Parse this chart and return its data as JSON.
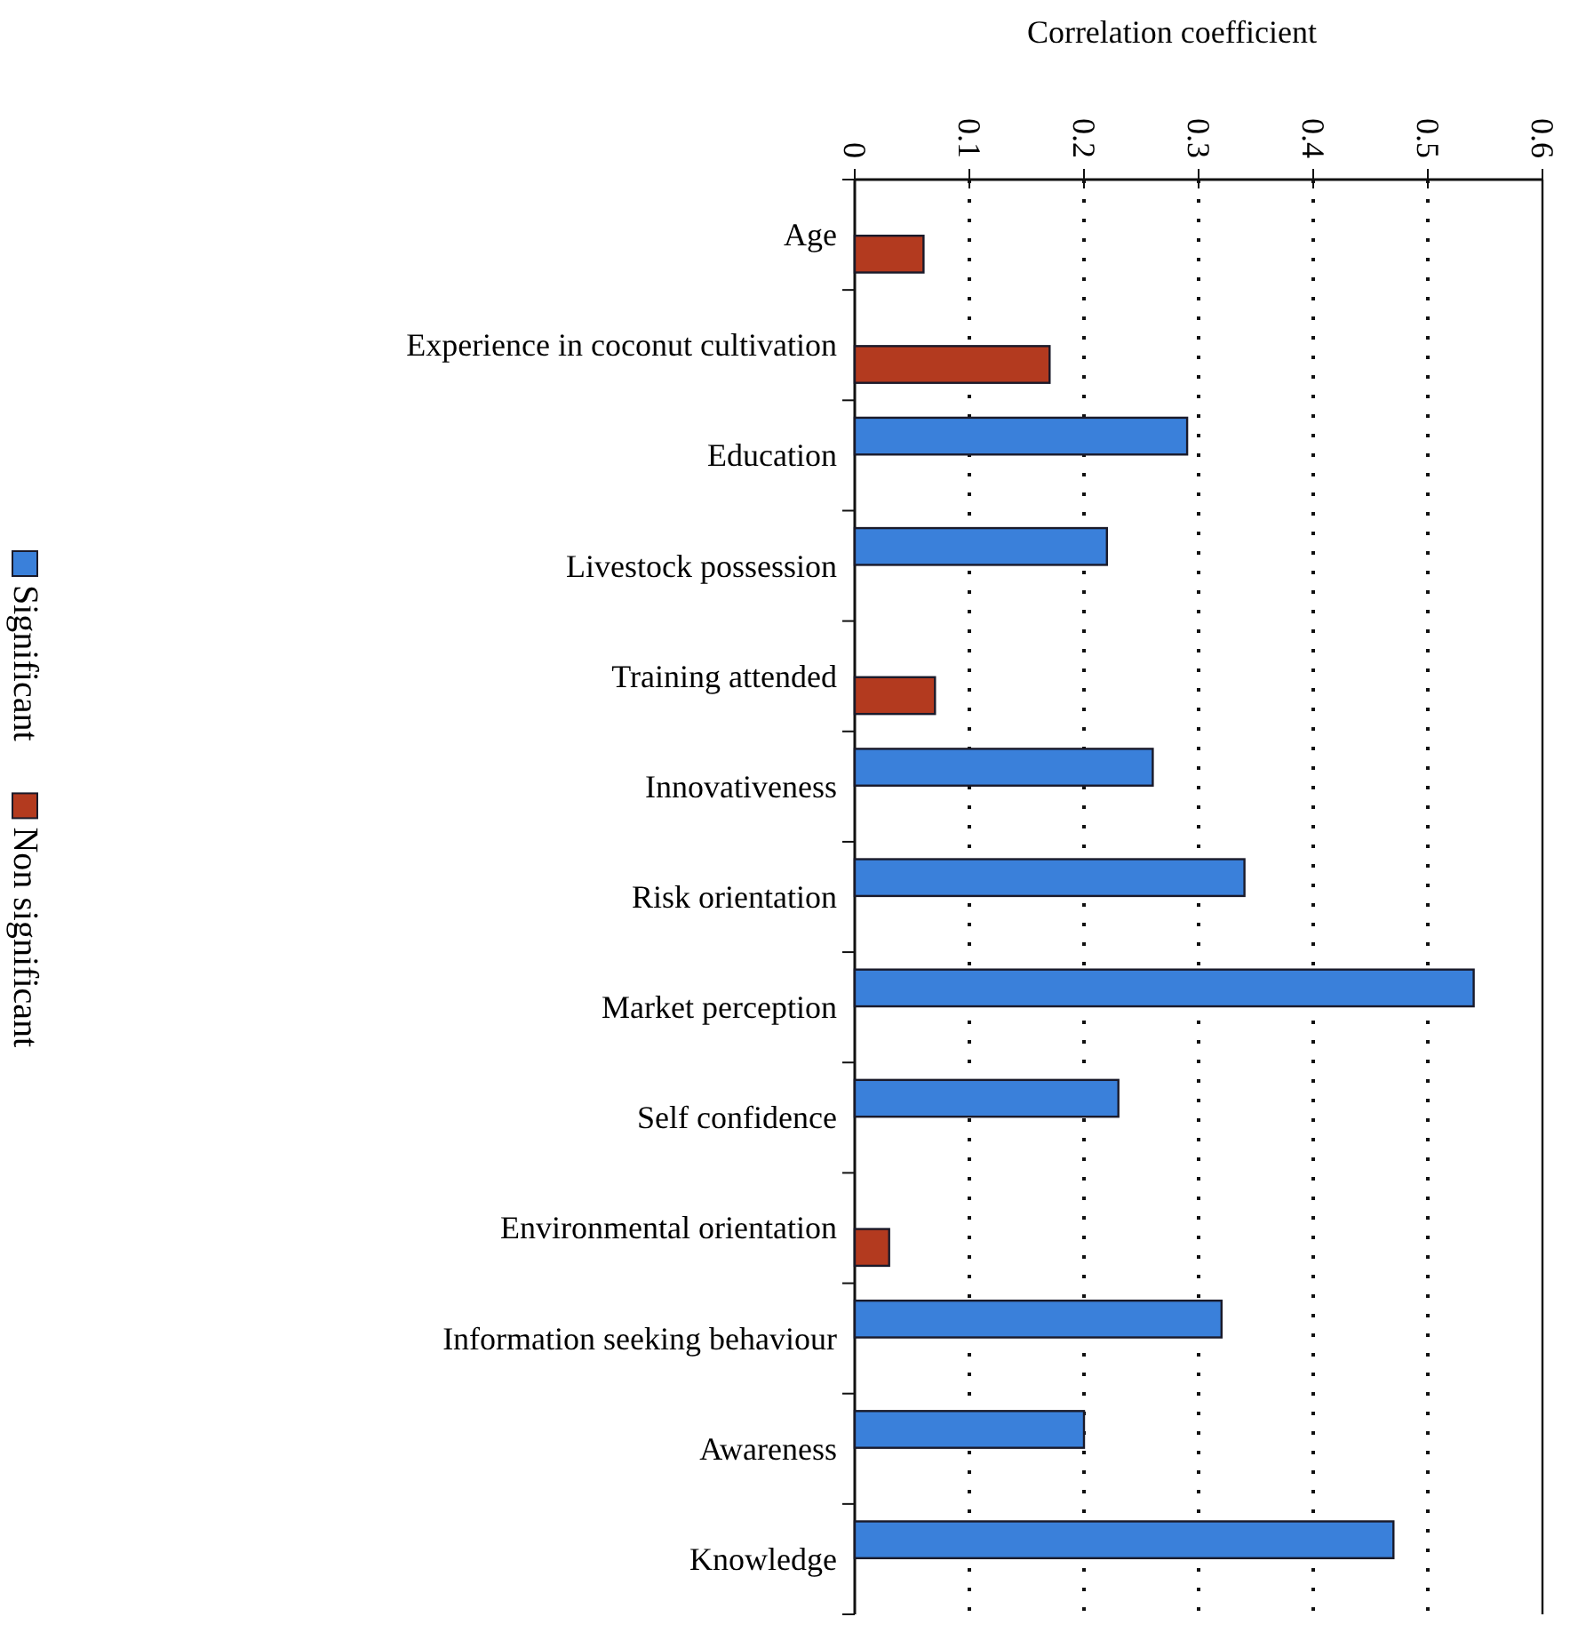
{
  "chart_data": {
    "type": "bar",
    "orientation": "horizontal",
    "xlabel": "Correlation coefficient",
    "categories": [
      "Age",
      "Experience in coconut cultivation",
      "Education",
      "Livestock possession",
      "Training attended",
      "Innovativeness",
      "Risk orientation",
      "Market perception",
      "Self confidence",
      "Environmental orientation",
      "Information seeking behaviour",
      "Awareness",
      "Knowledge"
    ],
    "series": [
      {
        "name": "Significant",
        "color": "#3a80da",
        "values": [
          null,
          null,
          0.29,
          0.22,
          null,
          0.26,
          0.34,
          0.54,
          0.23,
          null,
          0.32,
          0.2,
          0.47
        ]
      },
      {
        "name": "Non significant",
        "color": "#b33a1f",
        "values": [
          0.06,
          0.17,
          null,
          null,
          0.07,
          null,
          null,
          null,
          null,
          0.03,
          null,
          null,
          null
        ]
      }
    ],
    "xlim": [
      0,
      0.6
    ],
    "xticks": [
      0,
      0.1,
      0.2,
      0.3,
      0.4,
      0.5,
      0.6
    ],
    "grid": "x",
    "legend": "left"
  }
}
